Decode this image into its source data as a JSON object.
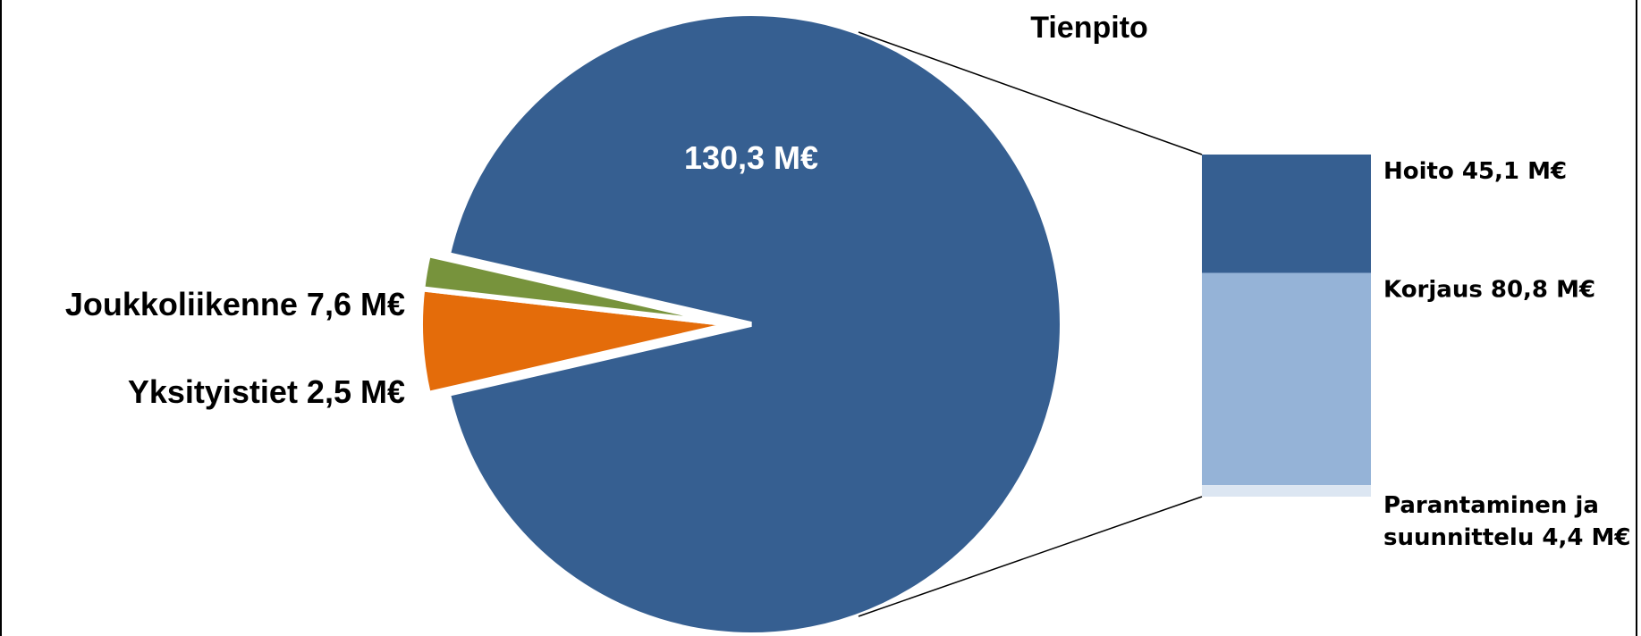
{
  "chart_data": {
    "type": "pie",
    "title": "Tienpito",
    "slices": [
      {
        "label": "Tienpito",
        "value": 130.3,
        "value_label": "130,3 M€",
        "color": "#365F91"
      },
      {
        "label": "Joukkoliikenne",
        "value": 7.6,
        "value_label": "Joukkoliikenne 7,6 M€",
        "color": "#E46C0A"
      },
      {
        "label": "Yksityistiet",
        "value": 2.5,
        "value_label": "Yksityistiet 2,5 M€",
        "color": "#77933C"
      }
    ],
    "breakdown": {
      "of": "Tienpito",
      "type": "stacked-bar",
      "items": [
        {
          "label": "Hoito",
          "value": 45.1,
          "line1": "Hoito 45,1 M€",
          "line2": "",
          "color": "#365F91"
        },
        {
          "label": "Korjaus",
          "value": 80.8,
          "line1": "Korjaus 80,8 M€",
          "line2": "",
          "color": "#95B3D7"
        },
        {
          "label": "Parantaminen ja suunnittelu",
          "value": 4.4,
          "line1": "Parantaminen ja",
          "line2": "suunnittelu 4,4 M€",
          "color": "#DCE6F2"
        }
      ]
    }
  }
}
